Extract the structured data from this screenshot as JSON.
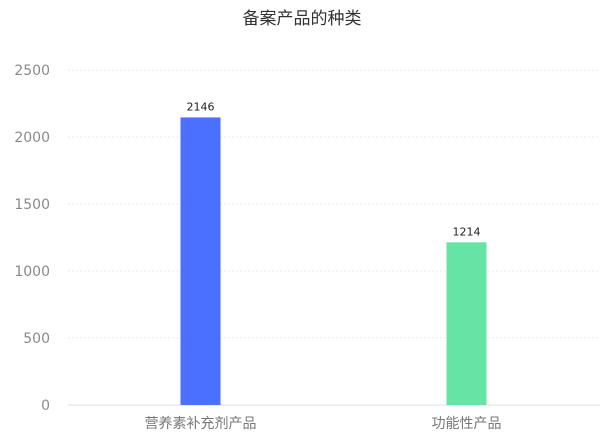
{
  "chart_data": {
    "type": "bar",
    "title": "备案产品的种类",
    "categories": [
      "营养素补充剂产品",
      "功能性产品"
    ],
    "values": [
      2146,
      1214
    ],
    "colors": [
      "#4b6ffe",
      "#67e3a5"
    ],
    "ylim": [
      0,
      2500
    ],
    "yticks": [
      0,
      500,
      1000,
      1500,
      2000,
      2500
    ],
    "grid": true,
    "xlabel": "",
    "ylabel": ""
  }
}
